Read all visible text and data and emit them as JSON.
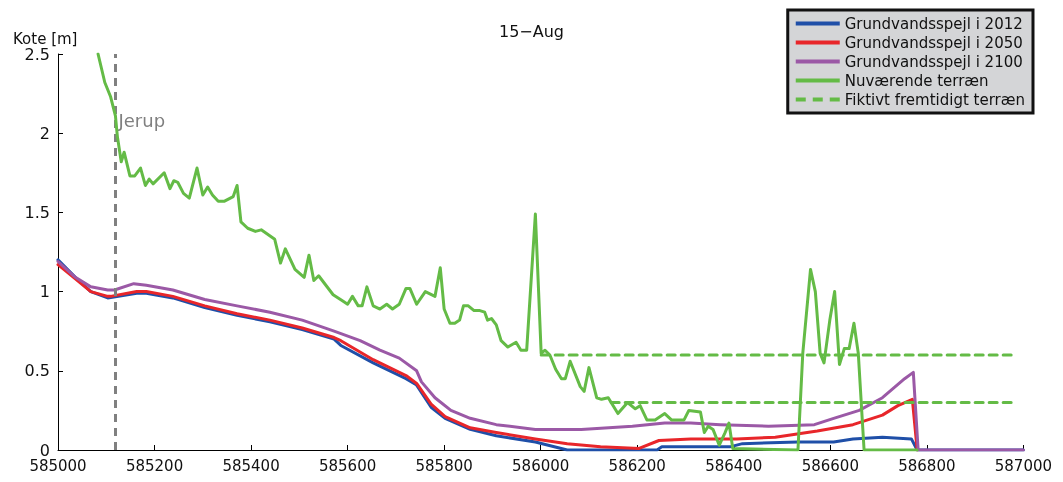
{
  "chart_data": {
    "type": "line",
    "title": "15−Aug",
    "ylabel": "Kote [m]",
    "xlim": [
      585000,
      587000
    ],
    "xticks": [
      585000,
      585200,
      585400,
      585600,
      585800,
      586000,
      586200,
      586400,
      586600,
      586800,
      587000
    ],
    "ylim": [
      0,
      2.5
    ],
    "yticks": [
      0,
      0.5,
      1,
      1.5,
      2,
      2.5
    ],
    "grid": false,
    "legend": "top right",
    "marker": "none",
    "ref_lines": [
      {
        "axis": "x",
        "value": 585119,
        "label": "Jerup",
        "color": "#808080",
        "line_style": "dashed"
      }
    ],
    "series": [
      {
        "name": "Grundvandsspejl i 2012",
        "color": "#1f4fa8",
        "line_style": "solid",
        "x": [
          585000,
          585036,
          585068,
          585103,
          585163,
          585183,
          585238,
          585304,
          585371,
          585439,
          585506,
          585572,
          585586,
          585653,
          585721,
          585743,
          585773,
          585802,
          585854,
          585908,
          585989,
          586055,
          586241,
          586251,
          586311,
          586392,
          586418,
          586533,
          586607,
          586647,
          586708,
          586768,
          586780,
          587000
        ],
        "values": [
          1.2,
          1.09,
          1.0,
          0.96,
          0.99,
          0.99,
          0.96,
          0.9,
          0.85,
          0.81,
          0.76,
          0.7,
          0.66,
          0.55,
          0.45,
          0.41,
          0.27,
          0.2,
          0.13,
          0.09,
          0.05,
          0,
          0,
          0.02,
          0.02,
          0.02,
          0.04,
          0.05,
          0.05,
          0.07,
          0.08,
          0.07,
          0,
          0
        ]
      },
      {
        "name": "Grundvandsspejl i 2050",
        "color": "#e8262a",
        "line_style": "solid",
        "x": [
          585000,
          585036,
          585068,
          585103,
          585109,
          585163,
          585183,
          585238,
          585304,
          585371,
          585439,
          585506,
          585572,
          585586,
          585653,
          585721,
          585743,
          585773,
          585802,
          585854,
          585908,
          585989,
          586055,
          586124,
          586204,
          586245,
          586311,
          586406,
          586486,
          586573,
          586647,
          586708,
          586740,
          586770,
          586780
        ],
        "values": [
          1.17,
          1.08,
          1.0,
          0.97,
          0.97,
          1.0,
          1.0,
          0.97,
          0.91,
          0.86,
          0.82,
          0.77,
          0.71,
          0.69,
          0.57,
          0.47,
          0.42,
          0.29,
          0.21,
          0.14,
          0.11,
          0.07,
          0.04,
          0.02,
          0.01,
          0.06,
          0.07,
          0.07,
          0.08,
          0.12,
          0.16,
          0.22,
          0.28,
          0.32,
          0
        ]
      },
      {
        "name": "Grundvandsspejl i 2100",
        "color": "#9b59a6",
        "line_style": "solid",
        "x": [
          585000,
          585036,
          585068,
          585103,
          585117,
          585157,
          585183,
          585238,
          585304,
          585371,
          585439,
          585506,
          585572,
          585626,
          585667,
          585707,
          585743,
          585753,
          585781,
          585814,
          585854,
          585908,
          585989,
          586084,
          586190,
          586257,
          586311,
          586372,
          586472,
          586567,
          586607,
          586660,
          586708,
          586754,
          586772,
          586782,
          587000
        ],
        "values": [
          1.19,
          1.09,
          1.03,
          1.01,
          1.01,
          1.05,
          1.04,
          1.01,
          0.95,
          0.91,
          0.87,
          0.82,
          0.75,
          0.69,
          0.63,
          0.58,
          0.5,
          0.43,
          0.33,
          0.25,
          0.2,
          0.16,
          0.13,
          0.13,
          0.15,
          0.17,
          0.17,
          0.16,
          0.15,
          0.16,
          0.2,
          0.25,
          0.33,
          0.45,
          0.49,
          0,
          0
        ]
      },
      {
        "name": "Nuværende terræn",
        "color": "#64bb46",
        "line_style": "solid",
        "x": [
          585083,
          585097,
          585109,
          585119,
          585123,
          585131,
          585137,
          585149,
          585159,
          585171,
          585181,
          585189,
          585197,
          585220,
          585232,
          585240,
          585248,
          585260,
          585272,
          585288,
          585300,
          585310,
          585320,
          585332,
          585344,
          585363,
          585371,
          585379,
          585393,
          585409,
          585421,
          585449,
          585461,
          585471,
          585491,
          585510,
          585520,
          585530,
          585540,
          585570,
          585590,
          585600,
          585610,
          585622,
          585630,
          585640,
          585653,
          585667,
          585681,
          585693,
          585707,
          585721,
          585729,
          585743,
          585761,
          585781,
          585792,
          585800,
          585812,
          585822,
          585832,
          585840,
          585850,
          585862,
          585874,
          585884,
          585890,
          585898,
          585908,
          585918,
          585932,
          585949,
          585959,
          585971,
          585989,
          586001,
          586009,
          586019,
          586031,
          586043,
          586051,
          586061,
          586082,
          586090,
          586100,
          586116,
          586126,
          586140,
          586146,
          586160,
          586180,
          586196,
          586206,
          586220,
          586237,
          586257,
          586271,
          586297,
          586307,
          586331,
          586339,
          586347,
          586357,
          586370,
          586382,
          586390,
          586398,
          586533,
          586543,
          586559,
          586569,
          586579,
          586587,
          586599,
          586609,
          586619,
          586629,
          586639,
          586649,
          586658,
          586670,
          586780
        ],
        "values": [
          2.5,
          2.32,
          2.23,
          2.11,
          1.98,
          1.82,
          1.88,
          1.73,
          1.73,
          1.78,
          1.67,
          1.71,
          1.68,
          1.75,
          1.65,
          1.7,
          1.69,
          1.62,
          1.59,
          1.78,
          1.61,
          1.66,
          1.61,
          1.57,
          1.57,
          1.6,
          1.67,
          1.44,
          1.4,
          1.38,
          1.39,
          1.33,
          1.18,
          1.27,
          1.14,
          1.09,
          1.23,
          1.07,
          1.1,
          0.98,
          0.94,
          0.92,
          0.97,
          0.91,
          0.91,
          1.03,
          0.91,
          0.89,
          0.92,
          0.89,
          0.92,
          1.02,
          1.02,
          0.92,
          1.0,
          0.97,
          1.15,
          0.89,
          0.8,
          0.8,
          0.82,
          0.91,
          0.91,
          0.88,
          0.88,
          0.87,
          0.82,
          0.83,
          0.79,
          0.69,
          0.65,
          0.68,
          0.63,
          0.63,
          1.49,
          0.61,
          0.63,
          0.6,
          0.51,
          0.45,
          0.45,
          0.56,
          0.4,
          0.37,
          0.52,
          0.33,
          0.32,
          0.33,
          0.3,
          0.23,
          0.3,
          0.26,
          0.28,
          0.19,
          0.19,
          0.23,
          0.19,
          0.19,
          0.25,
          0.24,
          0.11,
          0.15,
          0.13,
          0.03,
          0.11,
          0.17,
          0.01,
          0,
          0.61,
          1.14,
          1.0,
          0.61,
          0.55,
          0.82,
          1.0,
          0.54,
          0.64,
          0.64,
          0.8,
          0.61,
          0,
          0
        ]
      },
      {
        "name": "Fiktivt fremtidigt terræn",
        "color": "#64bb46",
        "line_style": "dashed",
        "x": [
          586001,
          586985,
          null,
          586146,
          586985
        ],
        "values": [
          0.6,
          0.6,
          null,
          0.3,
          0.3
        ]
      }
    ]
  }
}
